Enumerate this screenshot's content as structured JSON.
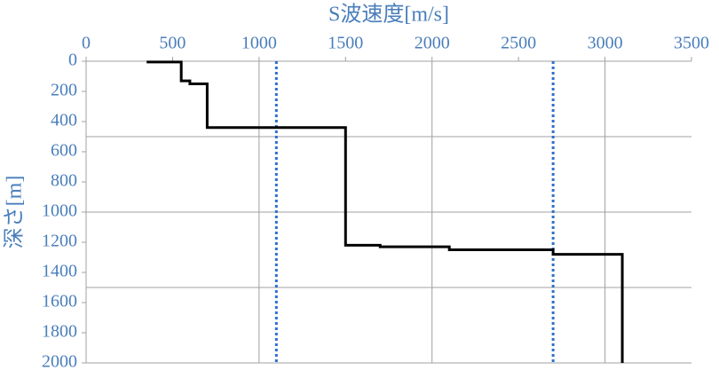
{
  "chart_data": {
    "type": "line",
    "x_label": "S波速度[m/s]",
    "y_label": "深さ[m]",
    "x_axis_position": "top",
    "y_inverted": true,
    "xlim": [
      0,
      3500
    ],
    "xticks": [
      0,
      500,
      1000,
      1500,
      2000,
      2500,
      3000,
      3500
    ],
    "ylim": [
      0,
      2000
    ],
    "yticks": [
      0,
      200,
      400,
      600,
      800,
      1000,
      1200,
      1400,
      1600,
      1800,
      2000
    ],
    "xgrid": [
      1000,
      2000,
      3000
    ],
    "ygrid": [
      500,
      1000,
      1500,
      2000
    ],
    "axis_color": "#4a7ebb",
    "vlines": {
      "x": [
        1100,
        2700
      ],
      "color": "#2e6fd0"
    },
    "series": [
      {
        "color": "#000000",
        "x": [
          350,
          550,
          550,
          600,
          600,
          700,
          700,
          1500,
          1500,
          1700,
          1700,
          2100,
          2100,
          2700,
          2700,
          3100,
          3100
        ],
        "y": [
          5,
          5,
          130,
          130,
          150,
          150,
          440,
          440,
          1220,
          1220,
          1230,
          1230,
          1250,
          1250,
          1280,
          1280,
          2000
        ]
      }
    ]
  }
}
